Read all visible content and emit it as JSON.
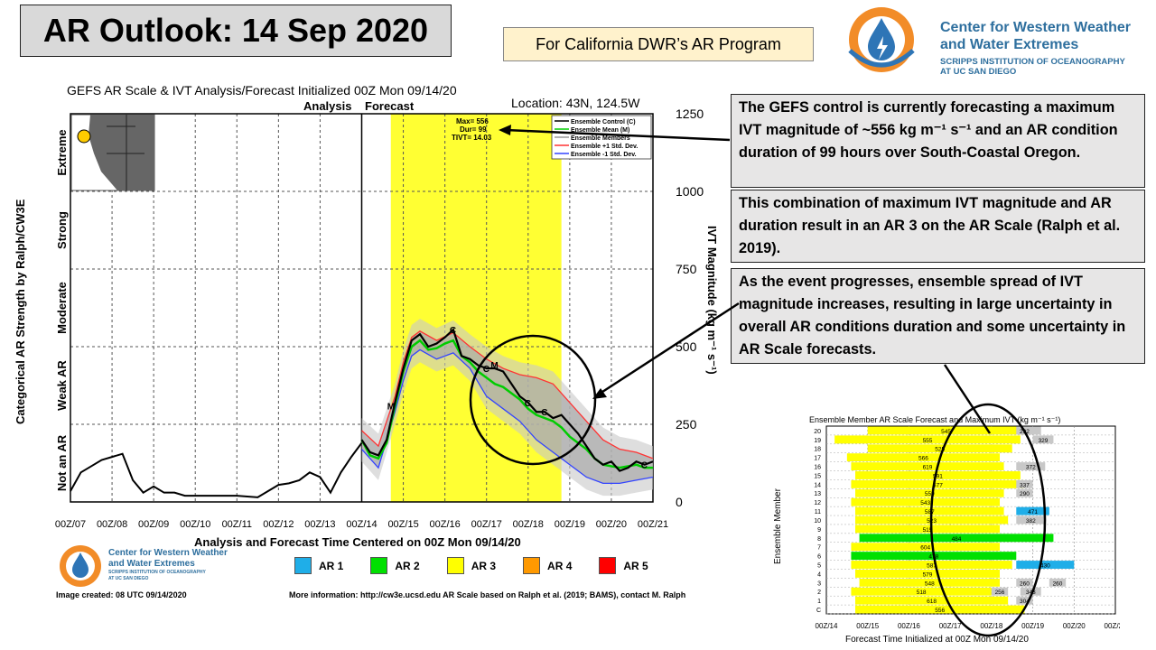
{
  "header": {
    "title": "AR Outlook: 14 Sep 2020",
    "program": "For California DWR’s AR Program",
    "logo_line1": "Center for Western Weather",
    "logo_line2": "and Water Extremes",
    "logo_sub1": "SCRIPPS INSTITUTION OF OCEANOGRAPHY",
    "logo_sub2": "AT UC SAN DIEGO"
  },
  "notes": [
    "The GEFS control is currently forecasting a maximum IVT magnitude of ~556 kg m⁻¹ s⁻¹ and an AR condition duration of 99 hours over South-Coastal Oregon.",
    "This combination of maximum IVT magnitude and AR duration result in an AR 3 on the AR Scale (Ralph et al. 2019).",
    "As the event progresses, ensemble spread of IVT magnitude increases, resulting in large uncertainty in overall AR conditions duration and some uncertainty in AR Scale forecasts."
  ],
  "colors": {
    "ar1": "#1faee8",
    "ar2": "#00e000",
    "ar3": "#ffff00",
    "ar4": "#ff9900",
    "ar5": "#ff0000",
    "forecast_bg": "#ffff33",
    "control": "#000000",
    "mean": "#00cc00",
    "plus_sd": "#ff3333",
    "minus_sd": "#3344ff"
  },
  "chart_data": [
    {
      "type": "line",
      "title": "GEFS AR Scale & IVT Analysis/Forecast Initialized 00Z Mon 09/14/20",
      "location": "Location: 43N, 124.5W",
      "xlabel": "Analysis and Forecast Time Centered on 00Z Mon 09/14/20",
      "ylabel": "IVT Magnitude (kg m⁻¹ s⁻¹)",
      "left_axis_label": "Categorical AR Strength by Ralph/CW3E",
      "categories_left": [
        "Not an AR",
        "Weak AR",
        "Moderate",
        "Strong",
        "Extreme"
      ],
      "x_ticks": [
        "00Z/07",
        "00Z/08",
        "00Z/09",
        "00Z/10",
        "00Z/11",
        "00Z/12",
        "00Z/13",
        "00Z/14",
        "00Z/15",
        "00Z/16",
        "00Z/17",
        "00Z/18",
        "00Z/19",
        "00Z/20",
        "00Z/21"
      ],
      "y_ticks": [
        0,
        250,
        500,
        750,
        1000,
        1250
      ],
      "ylim": [
        0,
        1250
      ],
      "xlim": [
        0,
        14
      ],
      "analysis_label": "Analysis",
      "forecast_label": "Forecast",
      "analysis_end": 7,
      "ar3_period": [
        7.7,
        11.8
      ],
      "stats": {
        "max": "Max= 556",
        "dur": "Dur= 99",
        "tivt": "TIVT= 14.03"
      },
      "legend": [
        "Ensemble Control (C)",
        "Ensemble Mean (M)",
        "Ensemble Members",
        "Ensemble +1 Std. Dev.",
        "Ensemble -1 Std. Dev."
      ],
      "markers": {
        "C": "C",
        "M": "M"
      },
      "analysis_series": {
        "name": "Analysis",
        "x": [
          0,
          0.25,
          0.5,
          0.75,
          1.0,
          1.25,
          1.5,
          1.75,
          2.0,
          2.25,
          2.5,
          2.75,
          3.0,
          3.5,
          4.0,
          4.5,
          5.0,
          5.25,
          5.5,
          5.75,
          6.0,
          6.25,
          6.5,
          6.75,
          7.0
        ],
        "y": [
          35,
          95,
          115,
          135,
          145,
          155,
          70,
          30,
          50,
          30,
          30,
          20,
          20,
          20,
          20,
          15,
          55,
          60,
          70,
          95,
          80,
          30,
          95,
          145,
          190
        ]
      },
      "series": [
        {
          "name": "Ensemble Control (C)",
          "x": [
            7,
            7.2,
            7.4,
            7.6,
            7.8,
            8.0,
            8.2,
            8.4,
            8.6,
            8.8,
            9.0,
            9.2,
            9.4,
            9.6,
            9.8,
            10.0,
            10.2,
            10.4,
            10.6,
            10.8,
            11.0,
            11.2,
            11.4,
            11.6,
            11.8,
            12.0,
            12.2,
            12.4,
            12.6,
            12.8,
            13.0,
            13.2,
            13.4,
            13.6,
            13.8,
            14.0
          ],
          "y": [
            200,
            160,
            150,
            200,
            320,
            430,
            520,
            540,
            500,
            510,
            530,
            555,
            470,
            460,
            440,
            430,
            430,
            420,
            380,
            340,
            320,
            290,
            290,
            270,
            280,
            250,
            220,
            180,
            140,
            120,
            130,
            100,
            110,
            130,
            120,
            130
          ]
        },
        {
          "name": "Ensemble Mean (M)",
          "x": [
            7,
            7.2,
            7.4,
            7.6,
            7.8,
            8.0,
            8.2,
            8.4,
            8.6,
            8.8,
            9.0,
            9.2,
            9.4,
            9.6,
            9.8,
            10.0,
            10.2,
            10.4,
            10.6,
            10.8,
            11.0,
            11.2,
            11.4,
            11.6,
            11.8,
            12.0,
            12.2,
            12.4,
            12.6,
            12.8,
            13.0,
            13.2,
            13.4,
            13.6,
            13.8,
            14.0
          ],
          "y": [
            200,
            150,
            140,
            190,
            310,
            420,
            500,
            520,
            490,
            495,
            510,
            520,
            470,
            450,
            420,
            400,
            380,
            370,
            350,
            330,
            300,
            280,
            270,
            260,
            240,
            210,
            190,
            170,
            140,
            120,
            115,
            110,
            115,
            120,
            110,
            110
          ]
        },
        {
          "name": "Ensemble +1 Std. Dev.",
          "x": [
            7,
            7.4,
            7.8,
            8.0,
            8.2,
            8.4,
            8.8,
            9.2,
            9.6,
            10.0,
            10.4,
            10.8,
            11.2,
            11.6,
            12.0,
            12.4,
            12.8,
            13.2,
            13.6,
            14.0
          ],
          "y": [
            230,
            180,
            340,
            450,
            530,
            550,
            520,
            545,
            500,
            460,
            430,
            410,
            400,
            380,
            320,
            260,
            200,
            170,
            160,
            140
          ]
        },
        {
          "name": "Ensemble -1 Std. Dev.",
          "x": [
            7,
            7.4,
            7.8,
            8.0,
            8.2,
            8.4,
            8.8,
            9.2,
            9.6,
            10.0,
            10.4,
            10.8,
            11.2,
            11.6,
            12.0,
            12.4,
            12.8,
            13.2,
            13.6,
            14.0
          ],
          "y": [
            170,
            110,
            290,
            390,
            470,
            490,
            460,
            480,
            430,
            340,
            300,
            260,
            200,
            160,
            120,
            80,
            60,
            60,
            70,
            80
          ]
        }
      ],
      "scale_legend": [
        "AR 1",
        "AR 2",
        "AR 3",
        "AR 4",
        "AR 5"
      ],
      "image_created": "Image created: 08 UTC 09/14/2020",
      "more_info": "More information: http://cw3e.ucsd.edu  AR Scale based on Ralph et al. (2019; BAMS), contact M. Ralph",
      "footer_logo_line1": "Center for Western Weather",
      "footer_logo_line2": "and Water Extremes",
      "footer_logo_sub1": "SCRIPPS INSTITUTION OF OCEANOGRAPHY",
      "footer_logo_sub2": "AT UC SAN DIEGO"
    },
    {
      "type": "bar",
      "title": "Ensemble Member AR Scale Forecast and Maximum IVT (kg m⁻¹ s⁻¹)",
      "xlabel": "Forecast Time Initialized at 00Z Mon 09/14/20",
      "ylabel": "Ensemble Member",
      "x_ticks": [
        "00Z/14",
        "00Z/15",
        "00Z/16",
        "00Z/17",
        "00Z/18",
        "00Z/19",
        "00Z/20",
        "00Z/21"
      ],
      "xlim": [
        0,
        7
      ],
      "rows": [
        {
          "member": "20",
          "value": 545,
          "segments": [
            {
              "s": 1.0,
              "e": 4.8,
              "c": 3
            },
            {
              "s": 4.8,
              "e": 5.2,
              "c": 0
            }
          ],
          "extra": {
            "label": "292",
            "s": 4.6,
            "e": 5.0,
            "c": 0
          }
        },
        {
          "member": "19",
          "value": 555,
          "segments": [
            {
              "s": 0.2,
              "e": 4.7,
              "c": 3
            }
          ],
          "extra": {
            "label": "329",
            "s": 5.0,
            "e": 5.5,
            "c": 0
          }
        },
        {
          "member": "18",
          "value": 525,
          "segments": [
            {
              "s": 1.0,
              "e": 4.5,
              "c": 3
            }
          ]
        },
        {
          "member": "17",
          "value": 566,
          "segments": [
            {
              "s": 0.5,
              "e": 4.2,
              "c": 3
            }
          ]
        },
        {
          "member": "16",
          "value": 619,
          "segments": [
            {
              "s": 0.6,
              "e": 4.3,
              "c": 3
            }
          ],
          "extra": {
            "label": "372",
            "s": 4.6,
            "e": 5.3,
            "c": 0
          }
        },
        {
          "member": "15",
          "value": 591,
          "segments": [
            {
              "s": 0.7,
              "e": 4.7,
              "c": 3
            }
          ]
        },
        {
          "member": "14",
          "value": 577,
          "segments": [
            {
              "s": 0.6,
              "e": 4.8,
              "c": 3
            }
          ],
          "extra": {
            "label": "337",
            "s": 4.6,
            "e": 5.0,
            "c": 0
          }
        },
        {
          "member": "13",
          "value": 559,
          "segments": [
            {
              "s": 0.7,
              "e": 4.3,
              "c": 3
            }
          ],
          "extra": {
            "label": "290",
            "s": 4.6,
            "e": 5.0,
            "c": 0
          }
        },
        {
          "member": "12",
          "value": 543,
          "segments": [
            {
              "s": 0.6,
              "e": 4.2,
              "c": 3
            }
          ]
        },
        {
          "member": "11",
          "value": 587,
          "segments": [
            {
              "s": 0.7,
              "e": 4.3,
              "c": 3
            }
          ],
          "extra": {
            "label": "471",
            "s": 4.6,
            "e": 5.4,
            "c": 1
          }
        },
        {
          "member": "10",
          "value": 523,
          "segments": [
            {
              "s": 0.7,
              "e": 4.4,
              "c": 3
            }
          ],
          "extra": {
            "label": "382",
            "s": 4.6,
            "e": 5.3,
            "c": 0
          }
        },
        {
          "member": "9",
          "value": 515,
          "segments": [
            {
              "s": 0.7,
              "e": 4.2,
              "c": 3
            }
          ]
        },
        {
          "member": "8",
          "value": 484,
          "segments": [
            {
              "s": 0.8,
              "e": 5.5,
              "c": 2
            }
          ]
        },
        {
          "member": "7",
          "value": 604,
          "segments": [
            {
              "s": 0.6,
              "e": 4.2,
              "c": 3
            }
          ]
        },
        {
          "member": "6",
          "value": 478,
          "segments": [
            {
              "s": 0.6,
              "e": 4.6,
              "c": 2
            }
          ]
        },
        {
          "member": "5",
          "value": 587,
          "segments": [
            {
              "s": 0.6,
              "e": 4.5,
              "c": 3
            }
          ],
          "extra": {
            "label": "430",
            "s": 4.6,
            "e": 6.0,
            "c": 1
          }
        },
        {
          "member": "4",
          "value": 579,
          "segments": [
            {
              "s": 0.7,
              "e": 4.2,
              "c": 3
            }
          ]
        },
        {
          "member": "3",
          "value": 548,
          "segments": [
            {
              "s": 0.8,
              "e": 4.2,
              "c": 3
            }
          ],
          "extra": {
            "label": "260",
            "s": 4.6,
            "e": 5.0,
            "c": 0
          },
          "extra2": {
            "label": "260",
            "s": 5.4,
            "e": 5.8,
            "c": 0
          }
        },
        {
          "member": "2",
          "value": 518,
          "segments": [
            {
              "s": 0.6,
              "e": 4.0,
              "c": 3
            }
          ],
          "extra": {
            "label": "256",
            "s": 4.0,
            "e": 4.4,
            "c": 0
          },
          "extra2": {
            "label": "343",
            "s": 4.7,
            "e": 5.2,
            "c": 0
          }
        },
        {
          "member": "1",
          "value": 618,
          "segments": [
            {
              "s": 0.7,
              "e": 4.4,
              "c": 3
            }
          ],
          "extra": {
            "label": "304",
            "s": 4.6,
            "e": 5.0,
            "c": 0
          }
        },
        {
          "member": "C",
          "value": 556,
          "segments": [
            {
              "s": 0.7,
              "e": 4.8,
              "c": 3
            }
          ]
        }
      ]
    }
  ]
}
